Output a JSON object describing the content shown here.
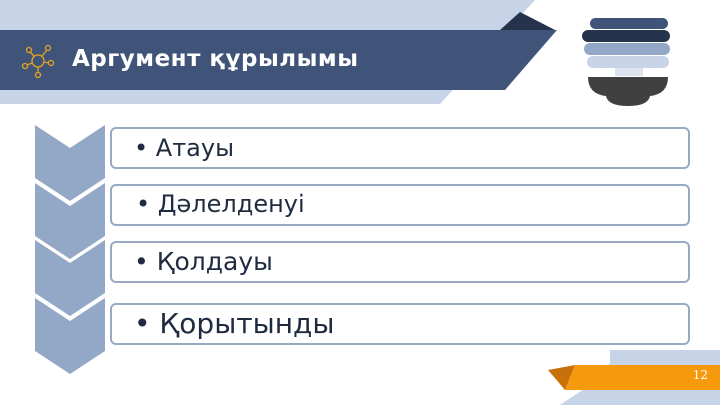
{
  "header": {
    "title": "Аргумент құрылымы",
    "icon": "network-icon"
  },
  "items": [
    {
      "label": "• Атауы"
    },
    {
      "label": "• Дәлелденуі"
    },
    {
      "label": "• Қолдауы"
    },
    {
      "label": "• Қорытынды"
    }
  ],
  "footer": {
    "page_number": "12"
  },
  "colors": {
    "dark_band": "#3f5478",
    "light_band": "#c7d3e6",
    "chevron": "#93a7c7",
    "box_border": "#98a9c6",
    "accent": "#f7990c"
  }
}
